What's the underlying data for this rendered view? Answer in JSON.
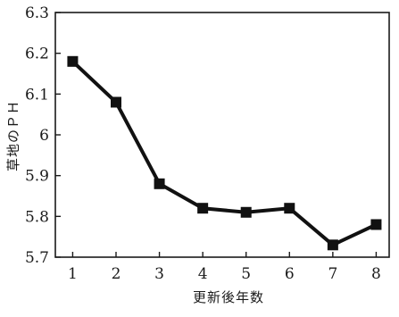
{
  "chart_data": {
    "type": "line",
    "title": "",
    "xlabel": "更新後年数",
    "ylabel": "草地のＰＨ",
    "x": [
      1,
      2,
      3,
      4,
      5,
      6,
      7,
      8
    ],
    "x_tick_labels": [
      "1",
      "2",
      "3",
      "4",
      "5",
      "6",
      "7",
      "8"
    ],
    "xlim": [
      0.6,
      8.3
    ],
    "ylim": [
      5.7,
      6.3
    ],
    "y_ticks": [
      5.7,
      5.8,
      5.9,
      6.0,
      6.1,
      6.2,
      6.3
    ],
    "y_tick_labels": [
      "5.7",
      "5.8",
      "5.9",
      "6",
      "6.1",
      "6.2",
      "6.3"
    ],
    "series": [
      {
        "values": [
          6.18,
          6.08,
          5.88,
          5.82,
          5.81,
          5.82,
          5.73,
          5.78
        ],
        "color": "#111111",
        "marker": "square"
      }
    ],
    "grid": false,
    "legend": "none"
  }
}
